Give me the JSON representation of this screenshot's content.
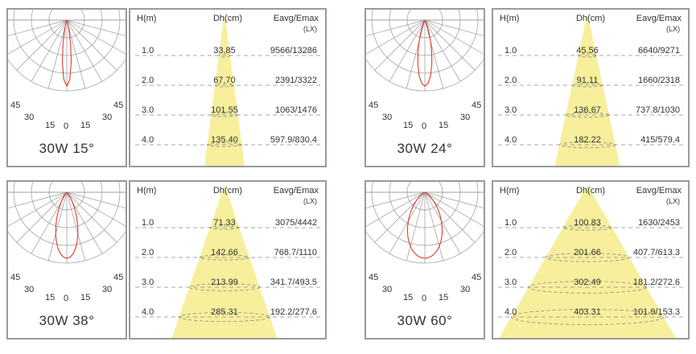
{
  "headers": {
    "height": "H(m)",
    "diameter": "Dh(cm)",
    "lux": "Eavg/Emax",
    "lux_unit": "(LX)"
  },
  "polar_ticks": {
    "outer": "45",
    "mid": "30",
    "inner": "15",
    "center": "0"
  },
  "colors": {
    "beam": "#f7ef9c",
    "curve": "#e03a2a",
    "grid": "#999999",
    "dash": "#8a8a8a",
    "border": "#9a9a9a"
  },
  "panels": [
    {
      "title": "30W 15°",
      "beam_angle": 15,
      "rows": [
        {
          "h": "1.0",
          "dh": "33.85",
          "lux": "9566/13286"
        },
        {
          "h": "2.0",
          "dh": "67.70",
          "lux": "2391/3322"
        },
        {
          "h": "3.0",
          "dh": "101.55",
          "lux": "1063/1476"
        },
        {
          "h": "4.0",
          "dh": "135.40",
          "lux": "597.9/830.4"
        }
      ]
    },
    {
      "title": "30W 24°",
      "beam_angle": 24,
      "rows": [
        {
          "h": "1.0",
          "dh": "45.56",
          "lux": "6640/9271"
        },
        {
          "h": "2.0",
          "dh": "91.11",
          "lux": "1660/2318"
        },
        {
          "h": "3.0",
          "dh": "136.67",
          "lux": "737.8/1030"
        },
        {
          "h": "4.0",
          "dh": "182.22",
          "lux": "415/579.4"
        }
      ]
    },
    {
      "title": "30W 38°",
      "beam_angle": 38,
      "rows": [
        {
          "h": "1.0",
          "dh": "71.33",
          "lux": "3075/4442"
        },
        {
          "h": "2.0",
          "dh": "142.66",
          "lux": "768.7/1110"
        },
        {
          "h": "3.0",
          "dh": "213.99",
          "lux": "341.7/493.5"
        },
        {
          "h": "4.0",
          "dh": "285.31",
          "lux": "192.2/277.6"
        }
      ]
    },
    {
      "title": "30W 60°",
      "beam_angle": 60,
      "rows": [
        {
          "h": "1.0",
          "dh": "100.83",
          "lux": "1630/2453"
        },
        {
          "h": "2.0",
          "dh": "201.66",
          "lux": "407.7/613.3"
        },
        {
          "h": "3.0",
          "dh": "302.49",
          "lux": "181.2/272.6"
        },
        {
          "h": "4.0",
          "dh": "403.31",
          "lux": "101.9/153.3"
        }
      ]
    }
  ]
}
